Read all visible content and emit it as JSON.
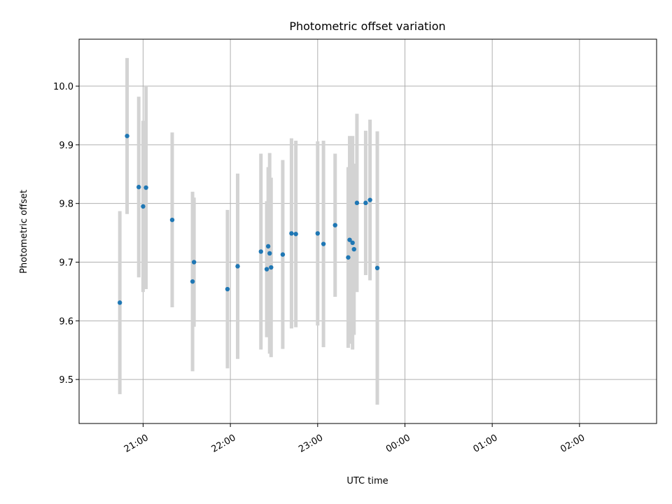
{
  "chart_data": {
    "type": "scatter",
    "title": "Photometric offset variation",
    "xlabel": "UTC time",
    "ylabel": "Photometric offset",
    "x_axis_type": "time",
    "xlim": [
      "20:16",
      "02:53"
    ],
    "ylim": [
      9.425,
      10.08
    ],
    "x_ticks": [
      "21:00",
      "22:00",
      "23:00",
      "00:00",
      "01:00",
      "02:00"
    ],
    "y_ticks": [
      9.5,
      9.6,
      9.7,
      9.8,
      9.9,
      10.0
    ],
    "y_tick_labels": [
      "9.5",
      "9.6",
      "9.7",
      "9.8",
      "9.9",
      "10.0"
    ],
    "grid": true,
    "legend": "none",
    "point_color": "#1f77b4",
    "errorbar_color": "#d3d3d3",
    "points": [
      {
        "x": "20:44",
        "y": 9.631,
        "err": 0.156
      },
      {
        "x": "20:49",
        "y": 9.915,
        "err": 0.133
      },
      {
        "x": "20:57",
        "y": 9.828,
        "err": 0.154
      },
      {
        "x": "21:00",
        "y": 9.795,
        "err": 0.146
      },
      {
        "x": "21:02",
        "y": 9.827,
        "err": 0.173
      },
      {
        "x": "21:20",
        "y": 9.772,
        "err": 0.149
      },
      {
        "x": "21:34",
        "y": 9.667,
        "err": 0.153
      },
      {
        "x": "21:35",
        "y": 9.7,
        "err": 0.11
      },
      {
        "x": "21:58",
        "y": 9.654,
        "err": 0.135
      },
      {
        "x": "22:05",
        "y": 9.693,
        "err": 0.158
      },
      {
        "x": "22:21",
        "y": 9.718,
        "err": 0.167
      },
      {
        "x": "22:25",
        "y": 9.688,
        "err": 0.116
      },
      {
        "x": "22:26",
        "y": 9.727,
        "err": 0.135
      },
      {
        "x": "22:27",
        "y": 9.715,
        "err": 0.171
      },
      {
        "x": "22:28",
        "y": 9.691,
        "err": 0.153
      },
      {
        "x": "22:36",
        "y": 9.713,
        "err": 0.161
      },
      {
        "x": "22:42",
        "y": 9.749,
        "err": 0.162
      },
      {
        "x": "22:45",
        "y": 9.748,
        "err": 0.159
      },
      {
        "x": "23:00",
        "y": 9.749,
        "err": 0.157
      },
      {
        "x": "23:04",
        "y": 9.731,
        "err": 0.176
      },
      {
        "x": "23:12",
        "y": 9.763,
        "err": 0.122
      },
      {
        "x": "23:21",
        "y": 9.708,
        "err": 0.154
      },
      {
        "x": "23:22",
        "y": 9.738,
        "err": 0.177
      },
      {
        "x": "23:24",
        "y": 9.733,
        "err": 0.182
      },
      {
        "x": "23:25",
        "y": 9.722,
        "err": 0.146
      },
      {
        "x": "23:27",
        "y": 9.801,
        "err": 0.152
      },
      {
        "x": "23:33",
        "y": 9.801,
        "err": 0.123
      },
      {
        "x": "23:36",
        "y": 9.806,
        "err": 0.137
      },
      {
        "x": "23:41",
        "y": 9.69,
        "err": 0.233
      }
    ]
  }
}
